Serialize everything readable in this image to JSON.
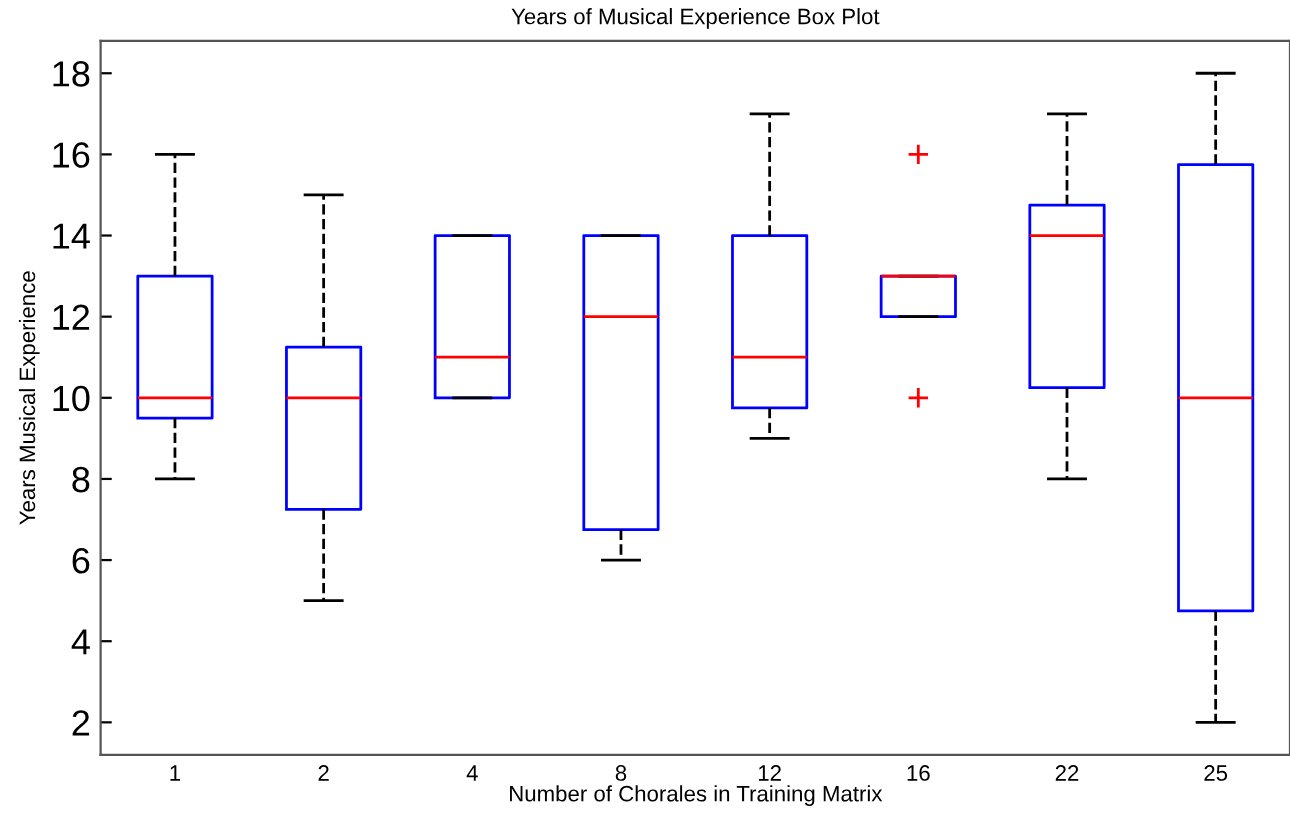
{
  "chart_data": {
    "type": "box",
    "title": "Years of Musical Experience Box Plot",
    "xlabel": "Number of Chorales in Training Matrix",
    "ylabel": "Years Musical Experience",
    "categories": [
      "1",
      "2",
      "4",
      "8",
      "12",
      "16",
      "22",
      "25"
    ],
    "boxes": [
      {
        "low": 8,
        "q1": 9.5,
        "median": 10,
        "q3": 13,
        "high": 16
      },
      {
        "low": 5,
        "q1": 7.25,
        "median": 10,
        "q3": 11.25,
        "high": 15
      },
      {
        "low": 10,
        "q1": 10,
        "median": 11,
        "q3": 14,
        "high": 14
      },
      {
        "low": 6,
        "q1": 6.75,
        "median": 12,
        "q3": 14,
        "high": 14
      },
      {
        "low": 9,
        "q1": 9.75,
        "median": 11,
        "q3": 14,
        "high": 17
      },
      {
        "low": 12,
        "q1": 12,
        "median": 13,
        "q3": 13,
        "high": 13,
        "outliers": [
          16,
          10
        ]
      },
      {
        "low": 8,
        "q1": 10.25,
        "median": 14,
        "q3": 14.75,
        "high": 17
      },
      {
        "low": 2,
        "q1": 4.75,
        "median": 10,
        "q3": 15.75,
        "high": 18
      }
    ],
    "color": "#0000ff",
    "ylim": [
      1.2,
      18.8
    ],
    "yticks": [
      2,
      4,
      6,
      8,
      10,
      12,
      14,
      16,
      18
    ],
    "grid": false,
    "line_style": "dashed"
  }
}
